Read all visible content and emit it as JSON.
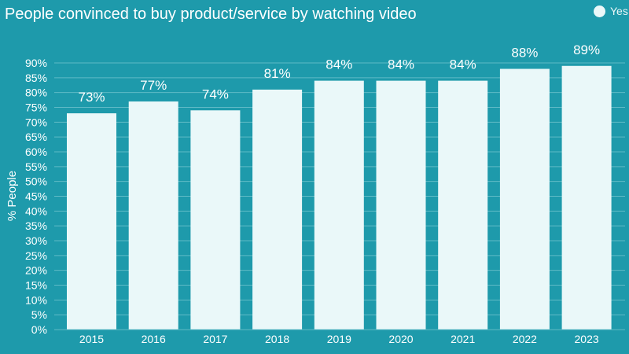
{
  "colors": {
    "background": "#1e9aab",
    "bar": "#eaf8f9",
    "grid": "#5fbac6",
    "text": "#ffffff"
  },
  "chart_data": {
    "type": "bar",
    "title": "People convinced to buy product/service by watching video",
    "xlabel": "",
    "ylabel": "% People",
    "categories": [
      "2015",
      "2016",
      "2017",
      "2018",
      "2019",
      "2020",
      "2021",
      "2022",
      "2023"
    ],
    "series": [
      {
        "name": "Yes",
        "values": [
          73,
          77,
          74,
          81,
          84,
          84,
          84,
          88,
          89
        ]
      }
    ],
    "data_labels": [
      "73%",
      "77%",
      "74%",
      "81%",
      "84%",
      "84%",
      "84%",
      "88%",
      "89%"
    ],
    "ylim": [
      0,
      90
    ],
    "yticks": [
      "0%",
      "5%",
      "10%",
      "15%",
      "20%",
      "25%",
      "30%",
      "35%",
      "40%",
      "45%",
      "50%",
      "55%",
      "60%",
      "65%",
      "70%",
      "75%",
      "80%",
      "85%",
      "90%"
    ],
    "grid": true,
    "legend_position": "top-right"
  }
}
